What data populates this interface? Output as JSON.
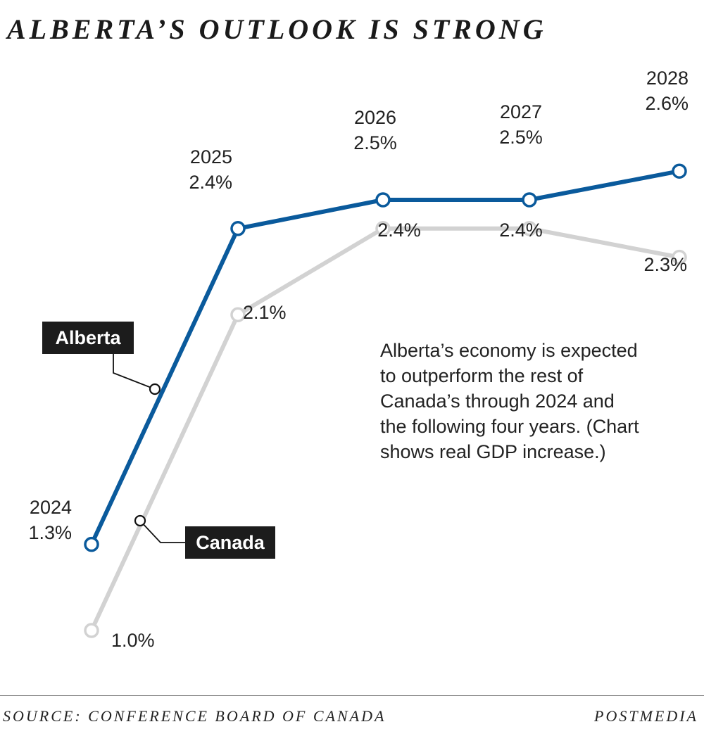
{
  "title": "ALBERTA’S  OUTLOOK IS STRONG",
  "note": "Alberta’s economy is expected to outperform the rest of Canada’s through 2024 and the following four years. (Chart shows real GDP increase.)",
  "footer": {
    "source": "SOURCE: CONFERENCE BOARD OF CANADA",
    "credit": "POSTMEDIA"
  },
  "chart_data": {
    "type": "line",
    "x": [
      "2024",
      "2025",
      "2026",
      "2027",
      "2028"
    ],
    "series": [
      {
        "name": "Alberta",
        "color": "#0a5a9c",
        "values": [
          1.3,
          2.4,
          2.5,
          2.5,
          2.6
        ],
        "labels": [
          "2024\n1.3%",
          "2025\n2.4%",
          "2026\n2.5%",
          "2027\n2.5%",
          "2028\n2.6%"
        ]
      },
      {
        "name": "Canada",
        "color": "#d2d2d2",
        "values": [
          1.0,
          2.1,
          2.4,
          2.4,
          2.3
        ],
        "labels": [
          "1.0%",
          "2.1%",
          "2.4%",
          "2.4%",
          "2.3%"
        ]
      }
    ],
    "grid": false,
    "legend": "inline callouts"
  }
}
